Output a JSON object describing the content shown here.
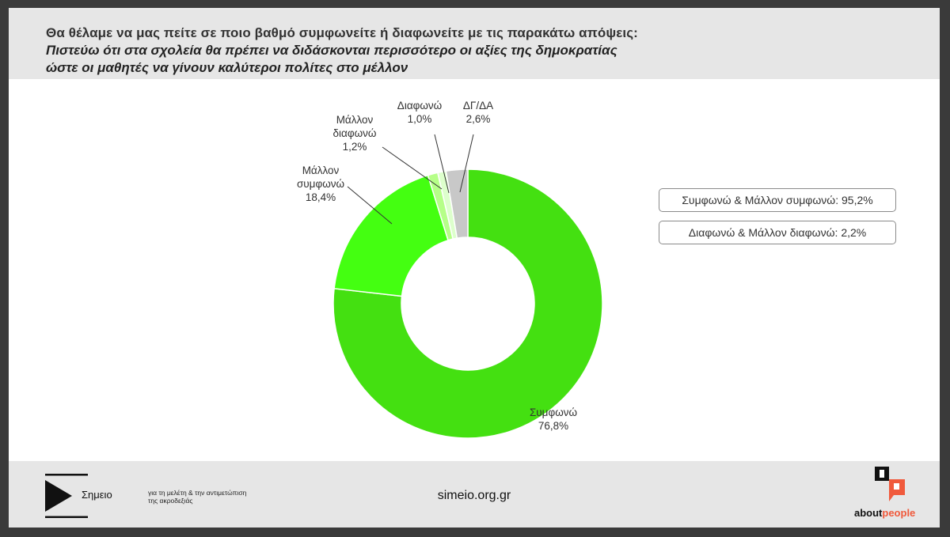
{
  "header": {
    "question": "Θα θέλαμε να μας πείτε σε ποιο βαθμό συμφωνείτε ή διαφωνείτε με τις παρακάτω απόψεις:",
    "statement_line1": "Πιστεύω ότι στα σχολεία θα πρέπει να διδάσκονται περισσότερο οι αξίες της δημοκρατίας",
    "statement_line2": "ώστε οι μαθητές να γίνουν καλύτεροι πολίτες στο μέλλον"
  },
  "summary": {
    "agree_total": "Συμφωνώ & Μάλλον συμφωνώ: 95,2%",
    "disagree_total": "Διαφωνώ & Μάλλον διαφωνώ: 2,2%"
  },
  "chart_data": {
    "type": "pie",
    "donut": true,
    "start_angle_deg": 0,
    "direction": "clockwise",
    "slices": [
      {
        "name": "Συμφωνώ",
        "value": 76.8,
        "label": "76,8%",
        "color": "#44e011"
      },
      {
        "name": "Μάλλον συμφωνώ",
        "value": 18.4,
        "label": "18,4%",
        "color": "#44ff11"
      },
      {
        "name": "Μάλλον διαφωνώ",
        "value": 1.2,
        "label": "1,2%",
        "color": "#b6ff88"
      },
      {
        "name": "Διαφωνώ",
        "value": 1.0,
        "label": "1,0%",
        "color": "#ddffcc"
      },
      {
        "name": "ΔΓ/ΔΑ",
        "value": 2.6,
        "label": "2,6%",
        "color": "#c8c8c8"
      }
    ]
  },
  "footer": {
    "logo_name": "Σημειο",
    "tagline_line1": "για τη μελέτη & την αντιμετώπιση",
    "tagline_line2": "της ακροδεξιάς",
    "site": "simeio.org.gr",
    "brand_about": "about",
    "brand_people": "people"
  }
}
